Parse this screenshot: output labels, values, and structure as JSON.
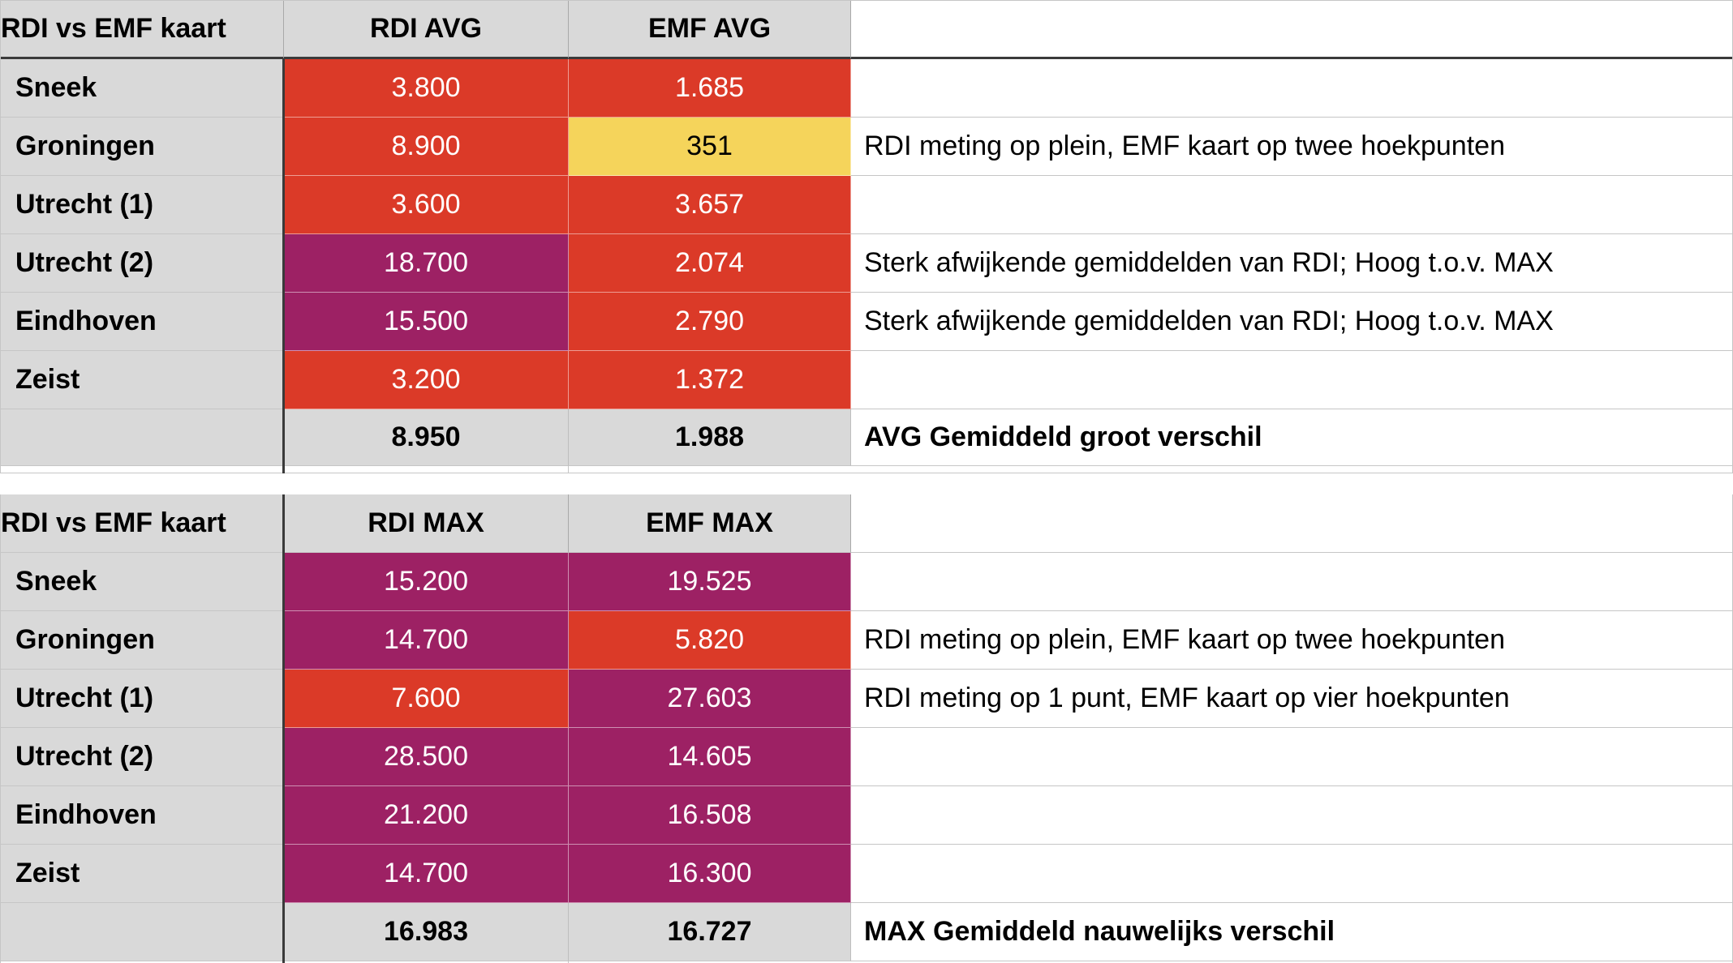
{
  "colors": {
    "red": "#db3a28",
    "purple": "#9d2164",
    "yellow": "#f5d45b",
    "header_gray": "#d9d9d9",
    "grid": "#c6c6c6",
    "divider_dark": "#3a3a3a",
    "text_light": "#ffffff",
    "text_dark": "#000000"
  },
  "tables": [
    {
      "title": "RDI vs EMF kaart",
      "col1": "RDI AVG",
      "col2": "EMF AVG",
      "rows": [
        {
          "label": "Sneek",
          "v1": "3.800",
          "t1": "red",
          "v2": "1.685",
          "t2": "red",
          "comment": ""
        },
        {
          "label": "Groningen",
          "v1": "8.900",
          "t1": "red",
          "v2": "351",
          "t2": "yellow",
          "comment": "RDI meting op plein, EMF kaart op twee hoekpunten"
        },
        {
          "label": "Utrecht (1)",
          "v1": "3.600",
          "t1": "red",
          "v2": "3.657",
          "t2": "red",
          "comment": ""
        },
        {
          "label": "Utrecht (2)",
          "v1": "18.700",
          "t1": "purple",
          "v2": "2.074",
          "t2": "red",
          "comment": "Sterk afwijkende gemiddelden van RDI; Hoog t.o.v. MAX"
        },
        {
          "label": "Eindhoven",
          "v1": "15.500",
          "t1": "purple",
          "v2": "2.790",
          "t2": "red",
          "comment": "Sterk afwijkende gemiddelden van RDI; Hoog t.o.v. MAX"
        },
        {
          "label": "Zeist",
          "v1": "3.200",
          "t1": "red",
          "v2": "1.372",
          "t2": "red",
          "comment": ""
        }
      ],
      "total": {
        "v1": "8.950",
        "v2": "1.988",
        "comment": "AVG Gemiddeld groot verschil"
      }
    },
    {
      "title": "RDI vs EMF kaart",
      "col1": "RDI MAX",
      "col2": "EMF MAX",
      "rows": [
        {
          "label": "Sneek",
          "v1": "15.200",
          "t1": "purple",
          "v2": "19.525",
          "t2": "purple",
          "comment": ""
        },
        {
          "label": "Groningen",
          "v1": "14.700",
          "t1": "purple",
          "v2": "5.820",
          "t2": "red",
          "comment": "RDI meting op plein, EMF kaart op twee hoekpunten"
        },
        {
          "label": "Utrecht (1)",
          "v1": "7.600",
          "t1": "red",
          "v2": "27.603",
          "t2": "purple",
          "comment": "RDI meting op 1 punt, EMF kaart op vier hoekpunten"
        },
        {
          "label": "Utrecht (2)",
          "v1": "28.500",
          "t1": "purple",
          "v2": "14.605",
          "t2": "purple",
          "comment": ""
        },
        {
          "label": "Eindhoven",
          "v1": "21.200",
          "t1": "purple",
          "v2": "16.508",
          "t2": "purple",
          "comment": ""
        },
        {
          "label": "Zeist",
          "v1": "14.700",
          "t1": "purple",
          "v2": "16.300",
          "t2": "purple",
          "comment": ""
        }
      ],
      "total": {
        "v1": "16.983",
        "v2": "16.727",
        "comment": "MAX Gemiddeld nauwelijks verschil"
      }
    }
  ]
}
